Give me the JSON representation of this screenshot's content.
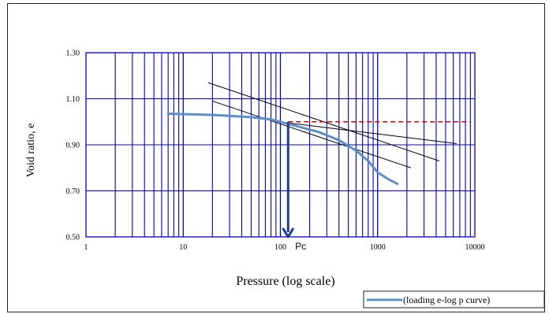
{
  "chart_data": {
    "type": "line",
    "title": "",
    "xlabel": "Pressure (log scale)",
    "ylabel": "Void ratio, e",
    "xscale": "log",
    "xlim": [
      1,
      10000
    ],
    "ylim": [
      0.5,
      1.3
    ],
    "x_tick_labels": [
      "1",
      "10",
      "100",
      "1000",
      "10000"
    ],
    "y_tick_labels": [
      "0.50",
      "0.70",
      "0.90",
      "1.10",
      "1.30"
    ],
    "grid": true,
    "grid_color": "#0000cc",
    "legend_position": "bottom-right",
    "series": [
      {
        "name": "(loading e-log p curve)",
        "color": "#5b8fc9",
        "x": [
          7,
          20,
          50,
          80,
          100,
          150,
          250,
          400,
          600,
          800,
          1000,
          1300,
          1600
        ],
        "y": [
          1.035,
          1.03,
          1.02,
          1.01,
          1.0,
          0.98,
          0.955,
          0.92,
          0.875,
          0.83,
          0.78,
          0.75,
          0.73
        ]
      }
    ],
    "construction_lines": [
      {
        "color": "#000000",
        "x": [
          18,
          4300
        ],
        "y": [
          1.17,
          0.83
        ]
      },
      {
        "color": "#000000",
        "x": [
          20,
          2200
        ],
        "y": [
          1.09,
          0.8
        ]
      },
      {
        "color": "#000000",
        "x": [
          120,
          6500
        ],
        "y": [
          0.995,
          0.905
        ]
      }
    ],
    "reference_line": {
      "color": "#cc0000",
      "style": "dashed",
      "y": 1.0,
      "x": [
        120,
        9000
      ]
    },
    "annotation": {
      "label": "Pc",
      "x": 120,
      "arrow_from_y": 1.0,
      "arrow_to_y": 0.5,
      "color": "#1f3a93"
    }
  }
}
